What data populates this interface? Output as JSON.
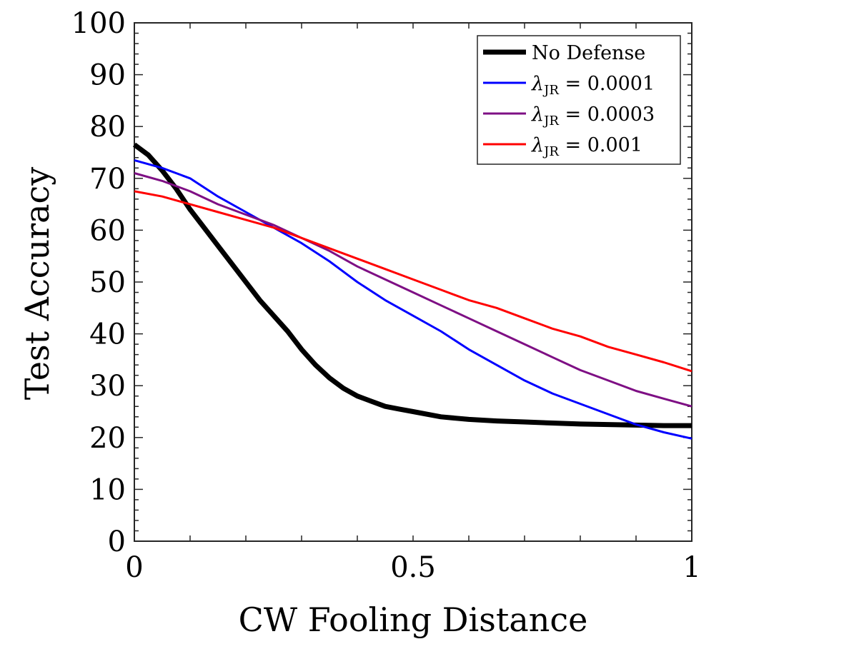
{
  "chart_data": {
    "type": "line",
    "title": "",
    "xlabel": "CW Fooling Distance",
    "ylabel": "Test Accuracy",
    "xlim": [
      0,
      1
    ],
    "ylim": [
      0,
      100
    ],
    "x_ticks": [
      "0",
      "0.5",
      "1"
    ],
    "y_ticks": [
      "0",
      "10",
      "20",
      "30",
      "40",
      "50",
      "60",
      "70",
      "80",
      "90",
      "100"
    ],
    "legend_position": "top-right",
    "series": [
      {
        "name": "No Defense",
        "color": "#000000",
        "x": [
          0,
          0.025,
          0.05,
          0.075,
          0.1,
          0.125,
          0.15,
          0.175,
          0.2,
          0.225,
          0.25,
          0.275,
          0.3,
          0.325,
          0.35,
          0.375,
          0.4,
          0.425,
          0.45,
          0.475,
          0.5,
          0.55,
          0.6,
          0.65,
          0.7,
          0.75,
          0.8,
          0.85,
          0.9,
          0.95,
          1.0
        ],
        "y": [
          76.5,
          74.5,
          71.5,
          68,
          64,
          60.5,
          57,
          53.5,
          50,
          46.5,
          43.5,
          40.5,
          37,
          34,
          31.5,
          29.5,
          28,
          27,
          26,
          25.5,
          25,
          24,
          23.5,
          23.2,
          23,
          22.8,
          22.6,
          22.5,
          22.4,
          22.3,
          22.3
        ]
      },
      {
        "name": "λJR = 0.0001",
        "name_symbol": "λ",
        "name_subscript": "JR",
        "name_value": "= 0.0001",
        "color": "#0000ff",
        "x": [
          0,
          0.05,
          0.1,
          0.15,
          0.2,
          0.25,
          0.3,
          0.35,
          0.4,
          0.45,
          0.5,
          0.55,
          0.6,
          0.65,
          0.7,
          0.75,
          0.8,
          0.85,
          0.9,
          0.95,
          1.0
        ],
        "y": [
          73.5,
          72,
          70,
          66.5,
          63.5,
          60.5,
          57.5,
          54,
          50,
          46.5,
          43.5,
          40.5,
          37,
          34,
          31,
          28.5,
          26.5,
          24.5,
          22.5,
          21,
          19.8
        ]
      },
      {
        "name": "λJR = 0.0003",
        "name_symbol": "λ",
        "name_subscript": "JR",
        "name_value": "= 0.0003",
        "color": "#7e0f84",
        "x": [
          0,
          0.05,
          0.1,
          0.15,
          0.2,
          0.25,
          0.3,
          0.35,
          0.4,
          0.45,
          0.5,
          0.55,
          0.6,
          0.65,
          0.7,
          0.75,
          0.8,
          0.85,
          0.9,
          0.95,
          1.0
        ],
        "y": [
          71,
          69.5,
          67.5,
          65,
          63,
          61,
          58.5,
          56,
          53,
          50.5,
          48,
          45.5,
          43,
          40.5,
          38,
          35.5,
          33,
          31,
          29,
          27.5,
          26
        ]
      },
      {
        "name": "λJR = 0.001",
        "name_symbol": "λ",
        "name_subscript": "JR",
        "name_value": "= 0.001",
        "color": "#ff0000",
        "x": [
          0,
          0.05,
          0.1,
          0.15,
          0.2,
          0.25,
          0.3,
          0.35,
          0.4,
          0.45,
          0.5,
          0.55,
          0.6,
          0.65,
          0.7,
          0.75,
          0.8,
          0.85,
          0.9,
          0.95,
          1.0
        ],
        "y": [
          67.5,
          66.5,
          65,
          63.5,
          62,
          60.5,
          58.5,
          56.5,
          54.5,
          52.5,
          50.5,
          48.5,
          46.5,
          45,
          43,
          41,
          39.5,
          37.5,
          36,
          34.5,
          32.8
        ]
      }
    ]
  }
}
